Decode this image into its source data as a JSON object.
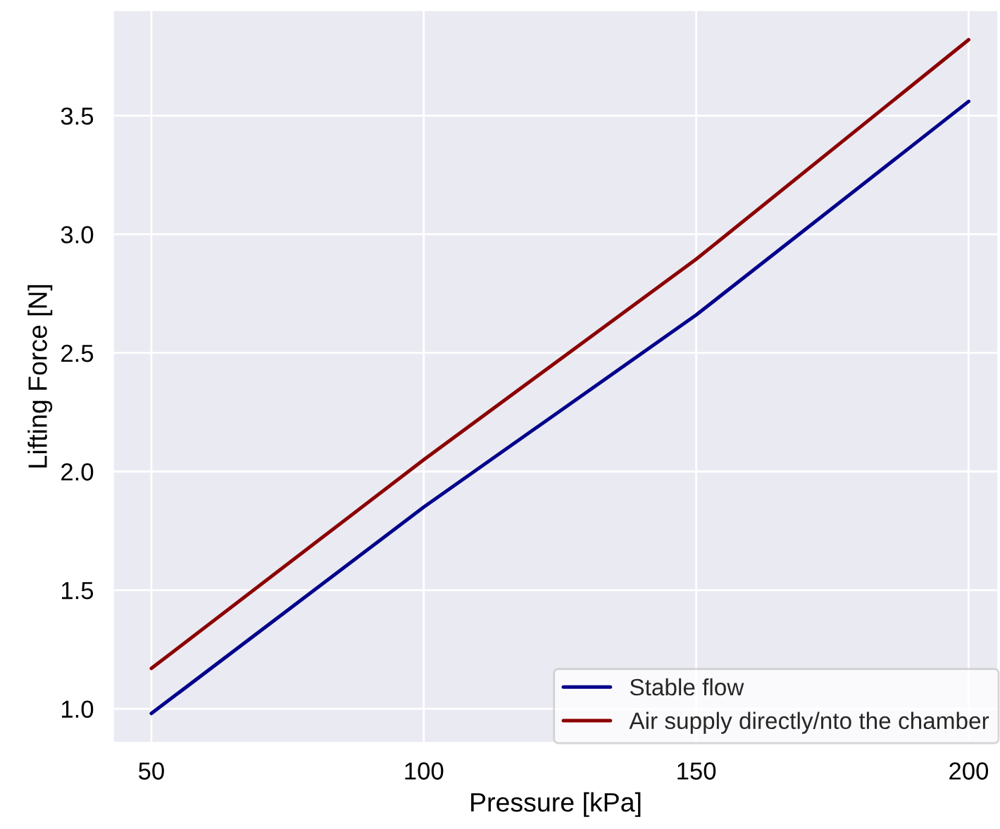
{
  "chart_data": {
    "type": "line",
    "xlabel": "Pressure [kPa]",
    "ylabel": "Lifting Force [N]",
    "x": [
      50,
      100,
      150,
      200
    ],
    "series": [
      {
        "name": "Stable flow",
        "color": "#00008b",
        "values": [
          0.98,
          1.85,
          2.66,
          3.56
        ]
      },
      {
        "name": "Air supply directly/nto the chamber",
        "color": "#8b0000",
        "values": [
          1.17,
          2.05,
          2.895,
          3.82
        ]
      }
    ],
    "xlim": [
      42.9,
      205.5
    ],
    "ylim": [
      0.855,
      3.946
    ],
    "xticks": [
      50,
      100,
      150,
      200
    ],
    "yticks": [
      {
        "value": 1.0,
        "label": "1.0"
      },
      {
        "value": 1.5,
        "label": "1.5"
      },
      {
        "value": 2.0,
        "label": "2.0"
      },
      {
        "value": 2.5,
        "label": "2.5"
      },
      {
        "value": 3.0,
        "label": "3.0"
      },
      {
        "value": 3.5,
        "label": "3.5"
      }
    ],
    "grid": true,
    "legend": "bottom right",
    "line_style": "solid",
    "marker": "none"
  }
}
